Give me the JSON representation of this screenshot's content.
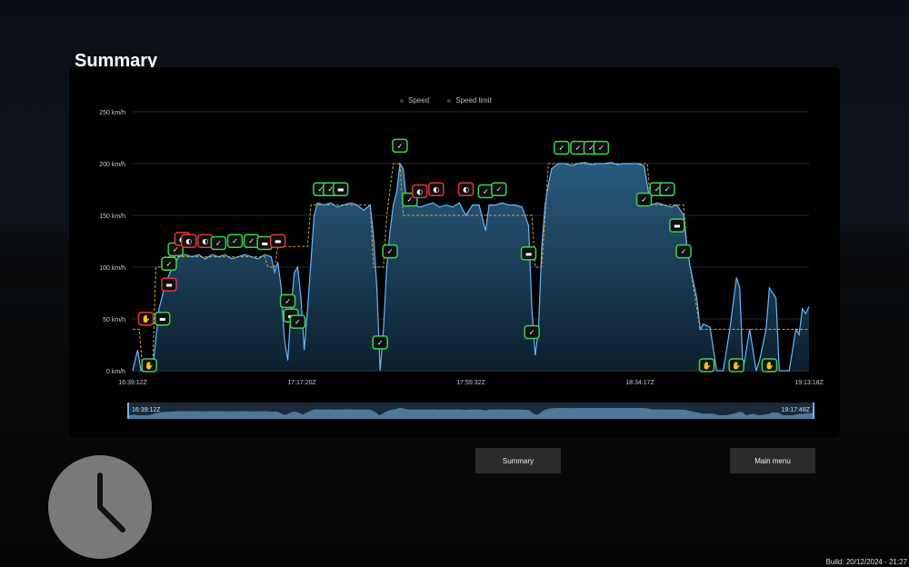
{
  "page": {
    "title": "Summary"
  },
  "legend": [
    {
      "label": "Speed"
    },
    {
      "label": "Speed limit"
    }
  ],
  "chart_data": {
    "type": "line",
    "y_axis": {
      "ticks": [
        "0 km/h",
        "50 km/h",
        "100 km/h",
        "150 km/h",
        "200 km/h",
        "250 km/h"
      ],
      "range": [
        0,
        250
      ]
    },
    "x_axis": {
      "tick_labels": [
        "16:39:12Z",
        "17:17:20Z",
        "17:55:32Z",
        "18:34:17Z",
        "19:13:18Z"
      ]
    },
    "series": [
      {
        "name": "Speed",
        "color": "#6ab6ff",
        "points": [
          [
            0,
            0
          ],
          [
            1.5,
            20
          ],
          [
            2.5,
            0
          ],
          [
            4,
            0
          ],
          [
            6,
            0
          ],
          [
            7,
            30
          ],
          [
            8,
            60
          ],
          [
            10,
            85
          ],
          [
            12,
            100
          ],
          [
            14,
            110
          ],
          [
            16,
            112
          ],
          [
            18,
            110
          ],
          [
            20,
            112
          ],
          [
            22,
            108
          ],
          [
            24,
            112
          ],
          [
            26,
            110
          ],
          [
            28,
            112
          ],
          [
            30,
            108
          ],
          [
            32,
            110
          ],
          [
            34,
            112
          ],
          [
            36,
            110
          ],
          [
            38,
            108
          ],
          [
            40,
            112
          ],
          [
            42,
            110
          ],
          [
            43,
            95
          ],
          [
            44,
            105
          ],
          [
            45,
            80
          ],
          [
            46,
            30
          ],
          [
            47,
            10
          ],
          [
            48,
            60
          ],
          [
            49,
            95
          ],
          [
            50,
            100
          ],
          [
            51,
            70
          ],
          [
            52,
            20
          ],
          [
            53,
            60
          ],
          [
            55,
            150
          ],
          [
            56,
            162
          ],
          [
            58,
            160
          ],
          [
            60,
            162
          ],
          [
            62,
            158
          ],
          [
            64,
            160
          ],
          [
            66,
            162
          ],
          [
            68,
            160
          ],
          [
            70,
            155
          ],
          [
            72,
            160
          ],
          [
            73,
            130
          ],
          [
            74,
            80
          ],
          [
            75,
            0
          ],
          [
            76,
            40
          ],
          [
            77,
            100
          ],
          [
            78,
            135
          ],
          [
            79,
            160
          ],
          [
            80,
            172
          ],
          [
            81,
            200
          ],
          [
            82,
            195
          ],
          [
            83,
            165
          ],
          [
            85,
            160
          ],
          [
            87,
            158
          ],
          [
            89,
            160
          ],
          [
            91,
            162
          ],
          [
            93,
            158
          ],
          [
            95,
            160
          ],
          [
            97,
            158
          ],
          [
            99,
            162
          ],
          [
            101,
            150
          ],
          [
            103,
            160
          ],
          [
            105,
            160
          ],
          [
            107,
            135
          ],
          [
            108,
            160
          ],
          [
            110,
            160
          ],
          [
            112,
            162
          ],
          [
            114,
            160
          ],
          [
            116,
            160
          ],
          [
            118,
            158
          ],
          [
            120,
            140
          ],
          [
            121,
            60
          ],
          [
            122,
            15
          ],
          [
            123,
            40
          ],
          [
            124,
            120
          ],
          [
            125,
            160
          ],
          [
            126,
            180
          ],
          [
            127,
            195
          ],
          [
            129,
            200
          ],
          [
            131,
            200
          ],
          [
            133,
            198
          ],
          [
            135,
            200
          ],
          [
            137,
            201
          ],
          [
            139,
            199
          ],
          [
            141,
            200
          ],
          [
            143,
            200
          ],
          [
            145,
            201
          ],
          [
            147,
            199
          ],
          [
            149,
            200
          ],
          [
            151,
            200
          ],
          [
            153,
            200
          ],
          [
            155,
            198
          ],
          [
            157,
            160
          ],
          [
            159,
            162
          ],
          [
            161,
            160
          ],
          [
            163,
            158
          ],
          [
            165,
            160
          ],
          [
            167,
            150
          ],
          [
            168,
            120
          ],
          [
            169,
            100
          ],
          [
            171,
            70
          ],
          [
            172,
            40
          ],
          [
            173,
            45
          ],
          [
            175,
            42
          ],
          [
            177,
            0
          ],
          [
            179,
            0
          ],
          [
            181,
            40
          ],
          [
            183,
            90
          ],
          [
            184,
            80
          ],
          [
            185,
            0
          ],
          [
            187,
            40
          ],
          [
            189,
            0
          ],
          [
            190,
            10
          ],
          [
            192,
            40
          ],
          [
            193,
            80
          ],
          [
            195,
            70
          ],
          [
            196,
            0
          ],
          [
            199,
            0
          ],
          [
            200,
            20
          ],
          [
            201,
            40
          ],
          [
            202,
            35
          ],
          [
            203,
            60
          ],
          [
            204,
            55
          ],
          [
            205,
            62
          ]
        ]
      },
      {
        "name": "Speed limit",
        "color": "#d4a72c",
        "points": [
          [
            0,
            40
          ],
          [
            2,
            40
          ],
          [
            3,
            0
          ],
          [
            6,
            0
          ],
          [
            7,
            100
          ],
          [
            9,
            100
          ],
          [
            10,
            110
          ],
          [
            40,
            110
          ],
          [
            41,
            100
          ],
          [
            43,
            100
          ],
          [
            44,
            120
          ],
          [
            53,
            120
          ],
          [
            54,
            160
          ],
          [
            72,
            160
          ],
          [
            73,
            100
          ],
          [
            76,
            100
          ],
          [
            77,
            150
          ],
          [
            79,
            200
          ],
          [
            81,
            200
          ],
          [
            82,
            150
          ],
          [
            121,
            150
          ],
          [
            122,
            100
          ],
          [
            124,
            100
          ],
          [
            125,
            150
          ],
          [
            126,
            200
          ],
          [
            156,
            200
          ],
          [
            157,
            160
          ],
          [
            167,
            160
          ],
          [
            168,
            120
          ],
          [
            169,
            100
          ],
          [
            172,
            40
          ],
          [
            205,
            40
          ]
        ]
      }
    ],
    "events": [
      {
        "kind": "warning",
        "icon": "stop-hand-icon",
        "x": 4,
        "y": 45
      },
      {
        "kind": "ok",
        "icon": "stop-hand-icon",
        "x": 5,
        "y": 0
      },
      {
        "kind": "ok",
        "icon": "speed-sign-icon",
        "x": 9,
        "y": 45
      },
      {
        "kind": "warning",
        "icon": "speed-sign-icon",
        "x": 11,
        "y": 78
      },
      {
        "kind": "ok",
        "icon": "shield-check-icon",
        "x": 11,
        "y": 98
      },
      {
        "kind": "ok",
        "icon": "shield-check-icon",
        "x": 13,
        "y": 112
      },
      {
        "kind": "warning",
        "icon": "brake-icon",
        "x": 15,
        "y": 122
      },
      {
        "kind": "warning",
        "icon": "brake-icon",
        "x": 17,
        "y": 120
      },
      {
        "kind": "warning",
        "icon": "brake-icon",
        "x": 22,
        "y": 120
      },
      {
        "kind": "ok",
        "icon": "shield-check-icon",
        "x": 26,
        "y": 118
      },
      {
        "kind": "ok",
        "icon": "shield-check-icon",
        "x": 31,
        "y": 120
      },
      {
        "kind": "ok",
        "icon": "shield-check-icon",
        "x": 36,
        "y": 120
      },
      {
        "kind": "ok",
        "icon": "speed-sign-icon",
        "x": 40,
        "y": 118
      },
      {
        "kind": "warning",
        "icon": "speed-sign-icon",
        "x": 44,
        "y": 120
      },
      {
        "kind": "ok",
        "icon": "shield-check-icon",
        "x": 47,
        "y": 62
      },
      {
        "kind": "ok",
        "icon": "speed-sign-icon",
        "x": 48,
        "y": 48
      },
      {
        "kind": "ok",
        "icon": "shield-check-icon",
        "x": 50,
        "y": 42
      },
      {
        "kind": "ok",
        "icon": "shield-check-icon",
        "x": 57,
        "y": 170
      },
      {
        "kind": "ok",
        "icon": "shield-check-icon",
        "x": 60,
        "y": 170
      },
      {
        "kind": "ok",
        "icon": "speed-sign-icon",
        "x": 63,
        "y": 170
      },
      {
        "kind": "ok",
        "icon": "shield-check-icon",
        "x": 75,
        "y": 22
      },
      {
        "kind": "ok",
        "icon": "shield-check-icon",
        "x": 78,
        "y": 110
      },
      {
        "kind": "ok",
        "icon": "shield-check-icon",
        "x": 81,
        "y": 212
      },
      {
        "kind": "ok",
        "icon": "shield-check-icon",
        "x": 84,
        "y": 160
      },
      {
        "kind": "warning",
        "icon": "brake-icon",
        "x": 87,
        "y": 168
      },
      {
        "kind": "warning",
        "icon": "brake-icon",
        "x": 92,
        "y": 170
      },
      {
        "kind": "warning",
        "icon": "brake-icon",
        "x": 101,
        "y": 170
      },
      {
        "kind": "ok",
        "icon": "shield-check-icon",
        "x": 107,
        "y": 168
      },
      {
        "kind": "ok",
        "icon": "shield-check-icon",
        "x": 111,
        "y": 170
      },
      {
        "kind": "ok",
        "icon": "speed-sign-icon",
        "x": 120,
        "y": 108
      },
      {
        "kind": "ok",
        "icon": "shield-check-icon",
        "x": 121,
        "y": 32
      },
      {
        "kind": "ok",
        "icon": "shield-check-icon",
        "x": 130,
        "y": 210
      },
      {
        "kind": "ok",
        "icon": "shield-check-icon",
        "x": 135,
        "y": 210
      },
      {
        "kind": "ok",
        "icon": "shield-check-icon",
        "x": 139,
        "y": 210
      },
      {
        "kind": "ok",
        "icon": "shield-check-icon",
        "x": 142,
        "y": 210
      },
      {
        "kind": "ok",
        "icon": "shield-check-icon",
        "x": 155,
        "y": 160
      },
      {
        "kind": "ok",
        "icon": "shield-check-icon",
        "x": 159,
        "y": 170
      },
      {
        "kind": "ok",
        "icon": "shield-check-icon",
        "x": 162,
        "y": 170
      },
      {
        "kind": "ok",
        "icon": "speed-sign-icon",
        "x": 165,
        "y": 135
      },
      {
        "kind": "ok",
        "icon": "shield-check-icon",
        "x": 167,
        "y": 110
      },
      {
        "kind": "ok",
        "icon": "stop-hand-icon",
        "x": 174,
        "y": 0
      },
      {
        "kind": "ok",
        "icon": "stop-hand-icon",
        "x": 183,
        "y": 0
      },
      {
        "kind": "ok",
        "icon": "stop-hand-icon",
        "x": 193,
        "y": 0
      }
    ]
  },
  "navigator": {
    "start_label": "16:39:12Z",
    "end_label": "19:17:48Z"
  },
  "buttons": {
    "summary": "Summary",
    "main_menu": "Main menu"
  },
  "build": {
    "text": "Build: 20/12/2024 - 21:27"
  },
  "colors": {
    "ok": "#39d353",
    "warning": "#e0353a",
    "speed": "#6ab6ff",
    "limit": "#d4a72c"
  }
}
